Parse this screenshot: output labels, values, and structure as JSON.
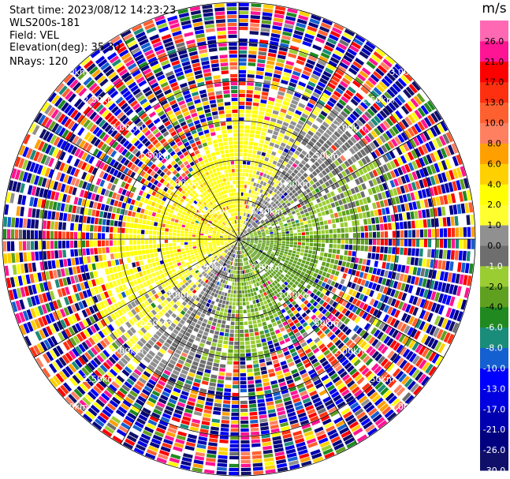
{
  "header": {
    "start_time": "Start time: 2023/08/12 14:23:23",
    "instrument": "WLS200s-181",
    "field": "Field: VEL",
    "elevation": "Elevation(deg): 35.30",
    "nrays": "NRays: 120"
  },
  "chart_data": {
    "type": "heatmap",
    "subtype": "polar-ppi",
    "field": "VEL",
    "nrays": 120,
    "elevation_deg": 35.3,
    "range_rings_km": [
      0.5,
      1.0,
      1.5,
      2.0,
      2.5,
      3.0
    ],
    "range_ring_labels": [
      "0.50km",
      "1.00km",
      "1.50km",
      "2.00km",
      "2.50km",
      "3.00km"
    ],
    "radial_lines_deg": [
      0,
      30,
      60,
      90,
      120,
      150,
      180,
      210,
      240,
      270,
      300,
      330
    ],
    "colorbar": {
      "unit": "m/s",
      "boundaries": [
        -30.0,
        -26.0,
        -21.0,
        -17.0,
        -13.0,
        -10.0,
        -8.0,
        -6.0,
        -4.0,
        -2.0,
        -1.0,
        0.0,
        1.0,
        2.0,
        4.0,
        6.0,
        8.0,
        10.0,
        13.0,
        17.0,
        21.0,
        26.0
      ],
      "colors": [
        "#10106a",
        "#000080",
        "#0000b0",
        "#0000e0",
        "#0000ff",
        "#1560d0",
        "#1a8c7a",
        "#208a20",
        "#60a020",
        "#9acd32",
        "#6e6e6e",
        "#909090",
        "#ffff30",
        "#ffff00",
        "#ffd000",
        "#ffa000",
        "#ff8060",
        "#ff6030",
        "#ff3010",
        "#ff0000",
        "#ff1493",
        "#ff69b4"
      ]
    }
  }
}
